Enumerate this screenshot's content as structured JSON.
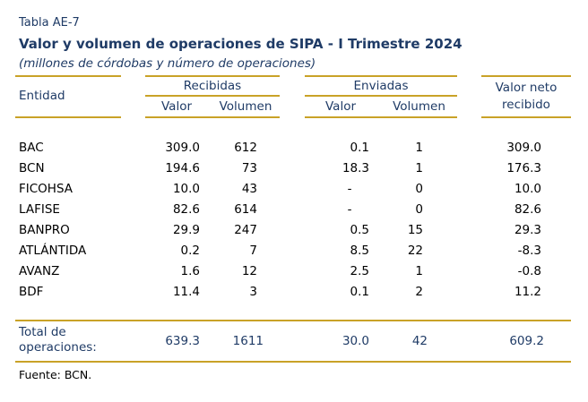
{
  "table_label": "Tabla AE-7",
  "title": "Valor y volumen de operaciones de SIPA - I Trimestre 2024",
  "subtitle": "(millones de córdobas y número de operaciones)",
  "headers": {
    "entidad": "Entidad",
    "recibidas": "Recibidas",
    "enviadas": "Enviadas",
    "valor": "Valor",
    "volumen": "Volumen",
    "valor_neto_line1": "Valor neto",
    "valor_neto_line2": "recibido"
  },
  "rows": [
    {
      "entidad": "BAC",
      "rec_valor": "309.0",
      "rec_volumen": "612",
      "env_valor": "0.1",
      "env_volumen": "1",
      "neto": "309.0"
    },
    {
      "entidad": "BCN",
      "rec_valor": "194.6",
      "rec_volumen": "73",
      "env_valor": "18.3",
      "env_volumen": "1",
      "neto": "176.3"
    },
    {
      "entidad": "FICOHSA",
      "rec_valor": "10.0",
      "rec_volumen": "43",
      "env_valor": "-",
      "env_volumen": "0",
      "neto": "10.0"
    },
    {
      "entidad": "LAFISE",
      "rec_valor": "82.6",
      "rec_volumen": "614",
      "env_valor": "-",
      "env_volumen": "0",
      "neto": "82.6"
    },
    {
      "entidad": "BANPRO",
      "rec_valor": "29.9",
      "rec_volumen": "247",
      "env_valor": "0.5",
      "env_volumen": "15",
      "neto": "29.3"
    },
    {
      "entidad": "ATLÁNTIDA",
      "rec_valor": "0.2",
      "rec_volumen": "7",
      "env_valor": "8.5",
      "env_volumen": "22",
      "neto": "-8.3"
    },
    {
      "entidad": "AVANZ",
      "rec_valor": "1.6",
      "rec_volumen": "12",
      "env_valor": "2.5",
      "env_volumen": "1",
      "neto": "-0.8"
    },
    {
      "entidad": "BDF",
      "rec_valor": "11.4",
      "rec_volumen": "3",
      "env_valor": "0.1",
      "env_volumen": "2",
      "neto": "11.2"
    }
  ],
  "total": {
    "label_line1": "Total de",
    "label_line2": "operaciones:",
    "rec_valor": "639.3",
    "rec_volumen": "1611",
    "env_valor": "30.0",
    "env_volumen": "42",
    "neto": "609.2"
  },
  "source": "Fuente: BCN.",
  "colors": {
    "title": "#1f3b66",
    "rule": "#c9a227"
  }
}
